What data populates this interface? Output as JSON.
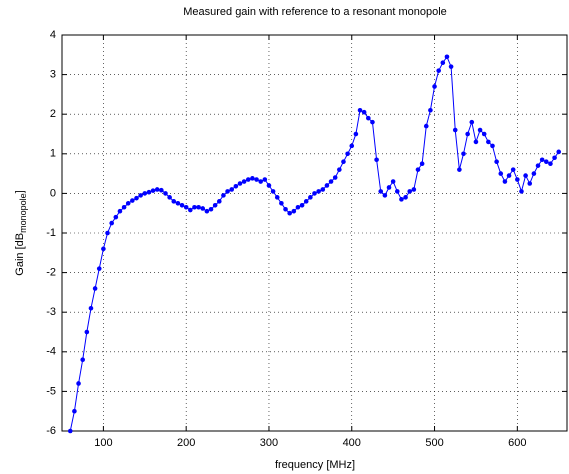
{
  "chart_data": {
    "type": "line",
    "title": "Measured gain with reference to a resonant monopole",
    "xlabel": "frequency [MHz]",
    "ylabel": {
      "text": "Gain [dB",
      "subscript": "monopole",
      "suffix": "]"
    },
    "xlim": [
      50,
      660
    ],
    "ylim": [
      -6,
      4
    ],
    "xticks": [
      100,
      200,
      300,
      400,
      500,
      600
    ],
    "yticks": [
      -6,
      -5,
      -4,
      -3,
      -2,
      -1,
      0,
      1,
      2,
      3,
      4
    ],
    "grid": true,
    "x": [
      60,
      65,
      70,
      75,
      80,
      85,
      90,
      95,
      100,
      105,
      110,
      115,
      120,
      125,
      130,
      135,
      140,
      145,
      150,
      155,
      160,
      165,
      170,
      175,
      180,
      185,
      190,
      195,
      200,
      205,
      210,
      215,
      220,
      225,
      230,
      235,
      240,
      245,
      250,
      255,
      260,
      265,
      270,
      275,
      280,
      285,
      290,
      295,
      300,
      305,
      310,
      315,
      320,
      325,
      330,
      335,
      340,
      345,
      350,
      355,
      360,
      365,
      370,
      375,
      380,
      385,
      390,
      395,
      400,
      405,
      410,
      415,
      420,
      425,
      430,
      435,
      440,
      445,
      450,
      455,
      460,
      465,
      470,
      475,
      480,
      485,
      490,
      495,
      500,
      505,
      510,
      515,
      520,
      525,
      530,
      535,
      540,
      545,
      550,
      555,
      560,
      565,
      570,
      575,
      580,
      585,
      590,
      595,
      600,
      605,
      610,
      615,
      620,
      625,
      630,
      635,
      640,
      645,
      650
    ],
    "series": [
      {
        "color": "#0000ff",
        "values": [
          -6,
          -5.5,
          -4.8,
          -4.2,
          -3.5,
          -2.9,
          -2.4,
          -1.9,
          -1.4,
          -1.0,
          -0.75,
          -0.6,
          -0.45,
          -0.35,
          -0.25,
          -0.18,
          -0.12,
          -0.05,
          0,
          0.03,
          0.07,
          0.1,
          0.08,
          0,
          -0.1,
          -0.2,
          -0.25,
          -0.3,
          -0.35,
          -0.42,
          -0.35,
          -0.35,
          -0.38,
          -0.45,
          -0.4,
          -0.3,
          -0.2,
          -0.05,
          0.05,
          0.1,
          0.18,
          0.25,
          0.3,
          0.35,
          0.38,
          0.35,
          0.3,
          0.35,
          0.2,
          0.05,
          -0.1,
          -0.25,
          -0.4,
          -0.5,
          -0.45,
          -0.35,
          -0.3,
          -0.2,
          -0.1,
          0,
          0.05,
          0.1,
          0.2,
          0.3,
          0.4,
          0.6,
          0.8,
          1.0,
          1.2,
          1.5,
          2.1,
          2.05,
          1.9,
          1.8,
          0.85,
          0.05,
          -0.05,
          0.15,
          0.3,
          0.05,
          -0.15,
          -0.1,
          0.05,
          0.1,
          0.6,
          0.75,
          1.7,
          2.1,
          2.7,
          3.1,
          3.3,
          3.45,
          3.2,
          1.6,
          0.6,
          1.0,
          1.5,
          1.8,
          1.3,
          1.6,
          1.5,
          1.3,
          1.2,
          0.8,
          0.5,
          0.3,
          0.45,
          0.6,
          0.35,
          0.05,
          0.45,
          0.25,
          0.5,
          0.7,
          0.85,
          0.8,
          0.75,
          0.9,
          1.05
        ]
      }
    ]
  }
}
